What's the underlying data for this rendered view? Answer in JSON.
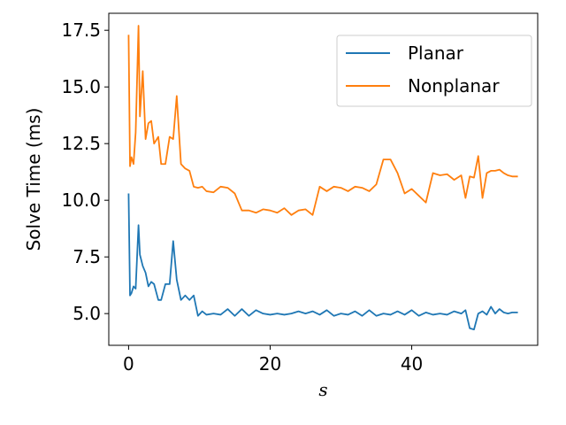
{
  "chart_data": {
    "type": "line",
    "title": "",
    "xlabel": "s",
    "ylabel": "Solve Time (ms)",
    "xlim": [
      -2.8,
      57.8
    ],
    "ylim": [
      3.6,
      18.25
    ],
    "xticks": [
      0,
      20,
      40
    ],
    "yticks": [
      5.0,
      7.5,
      10.0,
      12.5,
      15.0,
      17.5
    ],
    "xtick_labels": [
      "0",
      "20",
      "40"
    ],
    "ytick_labels": [
      "5.0",
      "7.5",
      "10.0",
      "12.5",
      "15.0",
      "17.5"
    ],
    "grid": false,
    "legend_position": "top-right",
    "series": [
      {
        "name": "Planar",
        "color": "#1f77b4",
        "x": [
          0,
          0.2,
          0.4,
          0.7,
          1.0,
          1.4,
          1.6,
          2.0,
          2.4,
          2.8,
          3.2,
          3.6,
          4.2,
          4.6,
          5.2,
          5.8,
          6.3,
          6.8,
          7.4,
          8.0,
          8.6,
          9.2,
          9.8,
          10.4,
          11.0,
          12.0,
          13.0,
          14.0,
          15.0,
          16.0,
          17.0,
          18.0,
          19.0,
          20.0,
          21.0,
          22.0,
          23.0,
          24.0,
          25.0,
          26.0,
          27.0,
          28.0,
          29.0,
          30.0,
          31.0,
          32.0,
          33.0,
          34.0,
          35.0,
          36.0,
          37.0,
          38.0,
          39.0,
          40.0,
          41.0,
          42.0,
          43.0,
          44.0,
          45.0,
          46.0,
          47.0,
          47.6,
          48.2,
          48.8,
          49.4,
          50.0,
          50.6,
          51.2,
          51.8,
          52.4,
          53.0,
          53.6,
          54.2,
          55.0
        ],
        "values": [
          10.3,
          5.8,
          5.9,
          6.2,
          6.1,
          8.9,
          7.6,
          7.1,
          6.8,
          6.2,
          6.4,
          6.3,
          5.6,
          5.6,
          6.3,
          6.3,
          8.2,
          6.5,
          5.6,
          5.8,
          5.6,
          5.8,
          4.9,
          5.1,
          4.95,
          5.0,
          4.95,
          5.2,
          4.9,
          5.2,
          4.9,
          5.15,
          5.0,
          4.95,
          5.0,
          4.95,
          5.0,
          5.1,
          5.0,
          5.1,
          4.95,
          5.15,
          4.9,
          5.0,
          4.95,
          5.1,
          4.9,
          5.15,
          4.9,
          5.0,
          4.95,
          5.1,
          4.95,
          5.15,
          4.9,
          5.05,
          4.95,
          5.0,
          4.95,
          5.1,
          5.0,
          5.15,
          4.35,
          4.3,
          5.0,
          5.1,
          4.95,
          5.3,
          5.0,
          5.2,
          5.05,
          5.0,
          5.05,
          5.05
        ]
      },
      {
        "name": "Nonplanar",
        "color": "#ff7f0e",
        "x": [
          0,
          0.2,
          0.4,
          0.7,
          1.0,
          1.4,
          1.6,
          2.0,
          2.4,
          2.8,
          3.2,
          3.6,
          4.2,
          4.6,
          5.2,
          5.8,
          6.3,
          6.8,
          7.4,
          8.0,
          8.6,
          9.2,
          9.8,
          10.4,
          11.0,
          12.0,
          13.0,
          14.0,
          15.0,
          16.0,
          17.0,
          18.0,
          19.0,
          20.0,
          21.0,
          22.0,
          23.0,
          24.0,
          25.0,
          26.0,
          27.0,
          28.0,
          29.0,
          30.0,
          31.0,
          32.0,
          33.0,
          34.0,
          35.0,
          36.0,
          37.0,
          38.0,
          39.0,
          40.0,
          41.0,
          42.0,
          43.0,
          44.0,
          45.0,
          46.0,
          47.0,
          47.6,
          48.2,
          48.8,
          49.4,
          50.0,
          50.6,
          51.2,
          51.8,
          52.4,
          53.0,
          53.6,
          54.2,
          55.0
        ],
        "values": [
          17.3,
          11.5,
          11.9,
          11.6,
          13.0,
          17.7,
          13.7,
          15.7,
          12.7,
          13.4,
          13.5,
          12.5,
          12.8,
          11.6,
          11.6,
          12.8,
          12.7,
          14.6,
          11.6,
          11.4,
          11.3,
          10.6,
          10.55,
          10.6,
          10.4,
          10.35,
          10.6,
          10.55,
          10.3,
          9.55,
          9.55,
          9.45,
          9.6,
          9.55,
          9.45,
          9.65,
          9.35,
          9.55,
          9.6,
          9.35,
          10.6,
          10.4,
          10.6,
          10.55,
          10.4,
          10.6,
          10.55,
          10.4,
          10.7,
          11.8,
          11.8,
          11.2,
          10.3,
          10.5,
          10.2,
          9.9,
          11.2,
          11.1,
          11.15,
          10.9,
          11.1,
          10.1,
          11.05,
          11.0,
          11.95,
          10.1,
          11.2,
          11.3,
          11.3,
          11.35,
          11.2,
          11.1,
          11.05,
          11.05
        ]
      }
    ]
  }
}
